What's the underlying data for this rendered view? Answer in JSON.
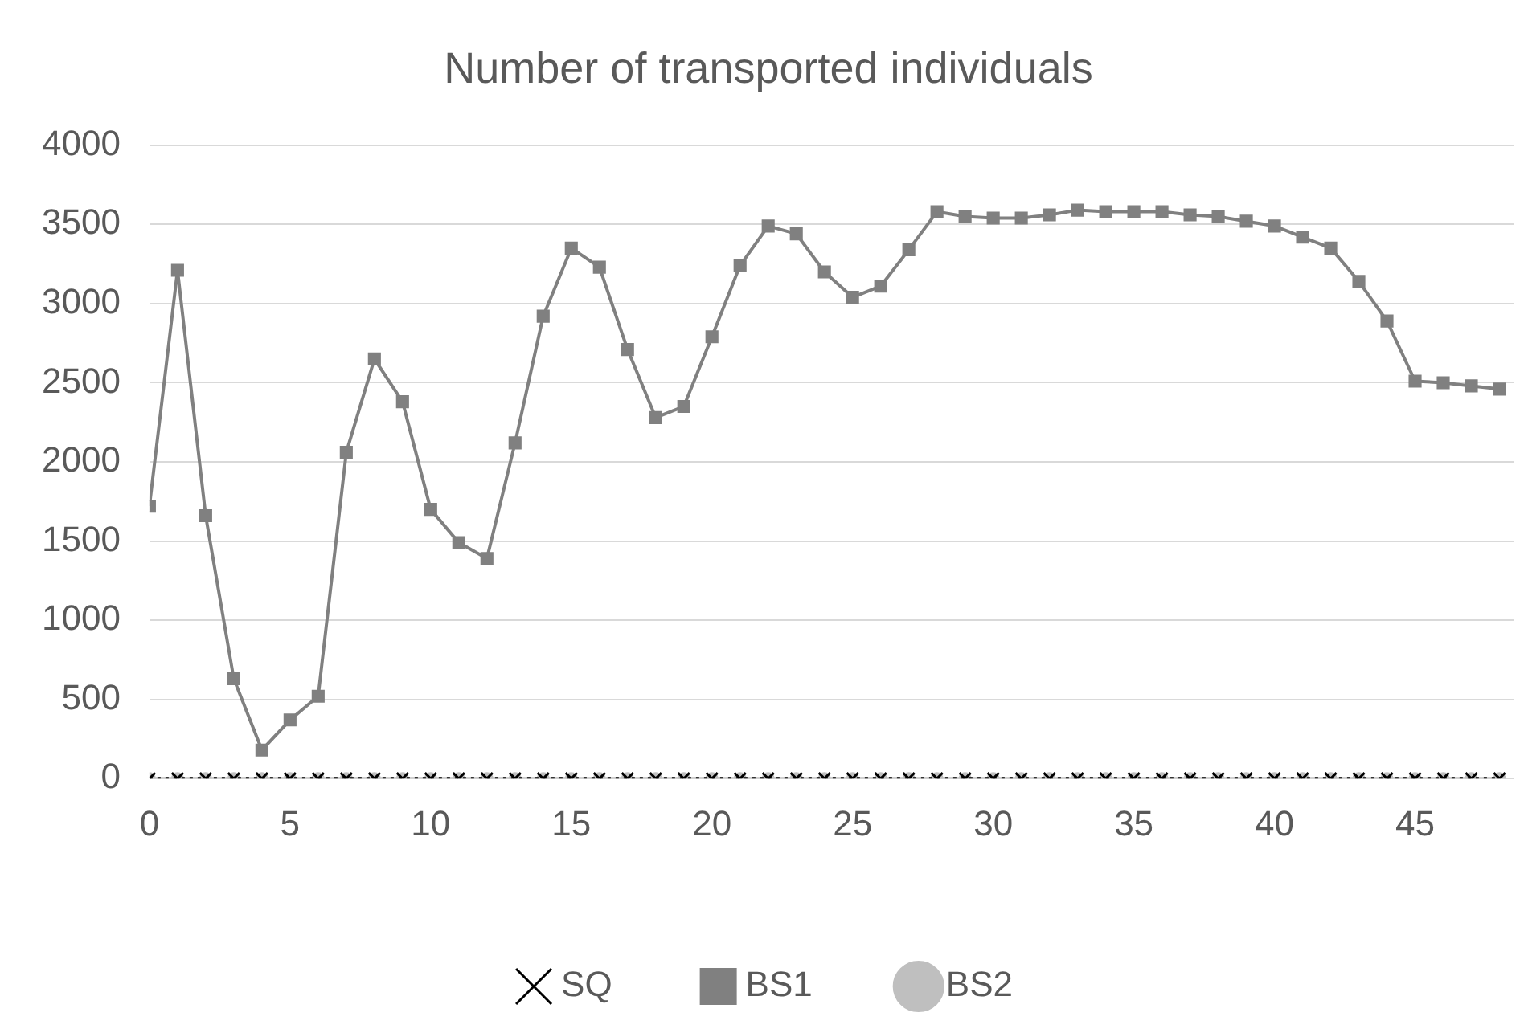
{
  "chart_data": {
    "type": "line",
    "title": "Number of transported individuals",
    "x": [
      0,
      1,
      2,
      3,
      4,
      5,
      6,
      7,
      8,
      9,
      10,
      11,
      12,
      13,
      14,
      15,
      16,
      17,
      18,
      19,
      20,
      21,
      22,
      23,
      24,
      25,
      26,
      27,
      28,
      29,
      30,
      31,
      32,
      33,
      34,
      35,
      36,
      37,
      38,
      39,
      40,
      41,
      42,
      43,
      44,
      45,
      46,
      47,
      48
    ],
    "series": [
      {
        "name": "SQ",
        "color": "#000000",
        "marker": "cross",
        "line_style": "dotted",
        "values": [
          0,
          0,
          0,
          0,
          0,
          0,
          0,
          0,
          0,
          0,
          0,
          0,
          0,
          0,
          0,
          0,
          0,
          0,
          0,
          0,
          0,
          0,
          0,
          0,
          0,
          0,
          0,
          0,
          0,
          0,
          0,
          0,
          0,
          0,
          0,
          0,
          0,
          0,
          0,
          0,
          0,
          0,
          0,
          0,
          0,
          0,
          0,
          0,
          0
        ]
      },
      {
        "name": "BS1",
        "color": "#808080",
        "marker": "square",
        "line_style": "solid",
        "values": [
          1720,
          3210,
          1660,
          630,
          180,
          370,
          520,
          2060,
          2650,
          2380,
          1700,
          1490,
          1390,
          2120,
          2920,
          3350,
          3230,
          2710,
          2280,
          2350,
          2790,
          3240,
          3490,
          3440,
          3200,
          3040,
          3110,
          3340,
          3580,
          3550,
          3540,
          3540,
          3560,
          3590,
          3580,
          3580,
          3580,
          3560,
          3550,
          3520,
          3490,
          3420,
          3350,
          3140,
          2890,
          2510,
          2500,
          2480,
          2460
        ]
      },
      {
        "name": "BS2",
        "color": "#bfbfbf",
        "marker": "circle",
        "line_style": "solid",
        "values": [
          0,
          0,
          0,
          0,
          0,
          0,
          0,
          0,
          0,
          0,
          0,
          0,
          0,
          0,
          0,
          0,
          0,
          0,
          0,
          0,
          0,
          0,
          0,
          0,
          0,
          0,
          0,
          0,
          0,
          0,
          0,
          0,
          0,
          0,
          0,
          0,
          0,
          0,
          0,
          0,
          0,
          0,
          0,
          0,
          0,
          0,
          0,
          0,
          0
        ]
      }
    ],
    "xlim": [
      0,
      48.5
    ],
    "xticks": [
      0,
      5,
      10,
      15,
      20,
      25,
      30,
      35,
      40,
      45
    ],
    "ylim": [
      0,
      4000
    ],
    "yticks": [
      0,
      500,
      1000,
      1500,
      2000,
      2500,
      3000,
      3500,
      4000
    ],
    "grid": "y",
    "legend": "bottom"
  }
}
